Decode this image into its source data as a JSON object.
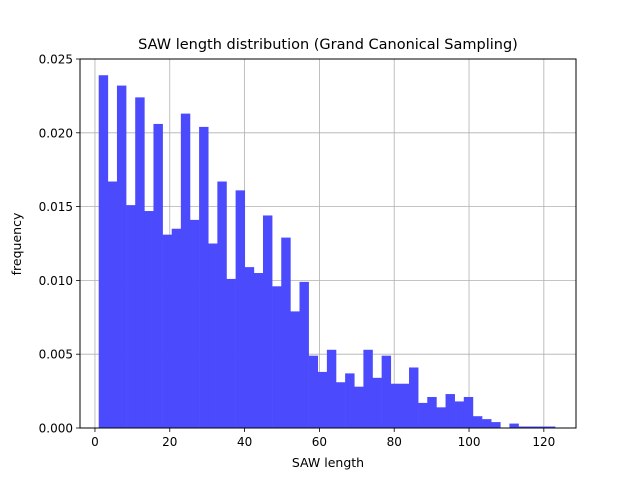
{
  "chart_data": {
    "type": "bar",
    "title": "SAW length distribution (Grand Canonical Sampling)",
    "xlabel": "SAW length",
    "ylabel": "frequency",
    "xlim": [
      -4,
      128.6
    ],
    "ylim": [
      0,
      0.025
    ],
    "xticks": [
      0,
      20,
      40,
      60,
      80,
      100,
      120
    ],
    "yticks": [
      0.0,
      0.005,
      0.01,
      0.015,
      0.02,
      0.025
    ],
    "xtick_labels": [
      "0",
      "20",
      "40",
      "60",
      "80",
      "100",
      "120"
    ],
    "ytick_labels": [
      "0.000",
      "0.005",
      "0.010",
      "0.015",
      "0.020",
      "0.025"
    ],
    "grid": true,
    "bar_color": "#4b4bfd",
    "bins": {
      "start": 1,
      "width": 2.44,
      "values": [
        0.0239,
        0.0167,
        0.0232,
        0.0151,
        0.0224,
        0.0147,
        0.0206,
        0.0131,
        0.0135,
        0.0213,
        0.0141,
        0.0204,
        0.0125,
        0.0167,
        0.0101,
        0.0161,
        0.0109,
        0.0105,
        0.0144,
        0.0096,
        0.0129,
        0.0079,
        0.0099,
        0.0049,
        0.0038,
        0.0053,
        0.0031,
        0.0037,
        0.0028,
        0.0053,
        0.0034,
        0.0049,
        0.003,
        0.003,
        0.0041,
        0.0017,
        0.0021,
        0.0014,
        0.0023,
        0.0018,
        0.0021,
        0.0008,
        0.0006,
        0.0004,
        0.0,
        0.0003,
        0.0001,
        0.0001,
        0.0001,
        0.0001
      ]
    }
  }
}
